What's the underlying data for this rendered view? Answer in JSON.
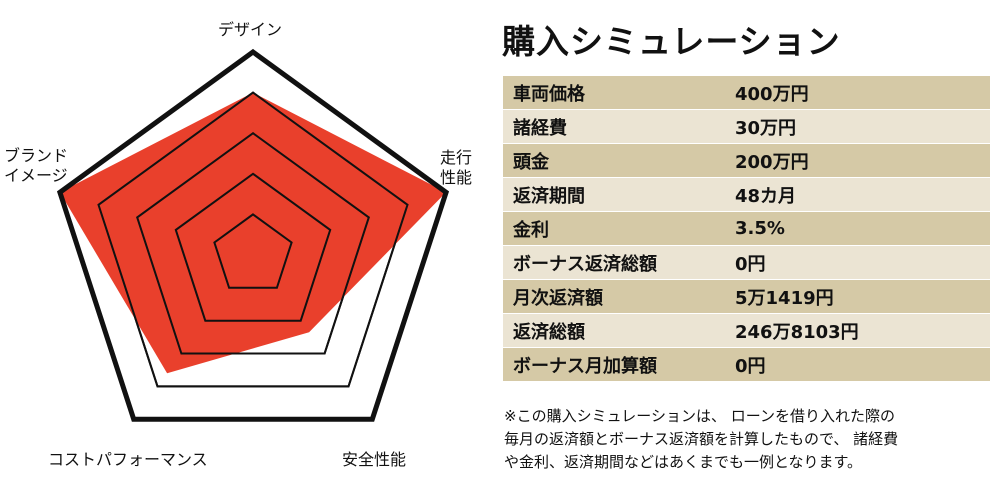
{
  "radar": {
    "axes": [
      "デザイン",
      "走行\n性能",
      "安全性能",
      "コストパフォーマンス",
      "ブランド\nイメージ"
    ],
    "axes_lines": [
      [
        "デザイン"
      ],
      [
        "走行",
        "性能"
      ],
      [
        "安全性能"
      ],
      [
        "コストパフォーマンス"
      ],
      [
        "ブランド",
        "イメージ"
      ]
    ],
    "levels": 5,
    "values": [
      0.8,
      1.0,
      0.47,
      0.72,
      1.0
    ],
    "fill_color": "#e83823",
    "grid_color": "#111111"
  },
  "simulation": {
    "title": "購入シミュレーション",
    "rows": [
      {
        "label": "車両価格",
        "value": "400万円"
      },
      {
        "label": "諸経費",
        "value": "30万円"
      },
      {
        "label": "頭金",
        "value": "200万円"
      },
      {
        "label": "返済期間",
        "value": "48カ月"
      },
      {
        "label": "金利",
        "value": "3.5%"
      },
      {
        "label": "ボーナス返済総額",
        "value": "0円"
      },
      {
        "label": "月次返済額",
        "value": "5万1419円"
      },
      {
        "label": "返済総額",
        "value": "246万8103円"
      },
      {
        "label": "ボーナス月加算額",
        "value": "0円"
      }
    ],
    "note_lines": [
      "※この購入シミュレーションは、 ローンを借り入れた際の",
      "毎月の返済額とボーナス返済額を計算したもので、 諸経費",
      "や金利、返済期間などはあくまでも一例となります。"
    ],
    "row_colors": [
      "#d5c9a6",
      "#ebe4d3"
    ]
  }
}
